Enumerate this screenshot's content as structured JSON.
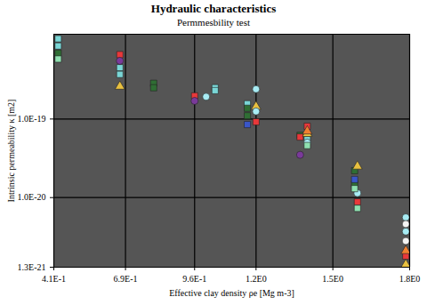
{
  "chart_data": {
    "type": "scatter",
    "title": "Hydraulic characteristics",
    "subtitle": "Permmesbility test",
    "x_label": "Effective clay density ρe [Mg m-3]",
    "y_label": "Intrinsic permeability κ [m2]",
    "log": "y",
    "grid": true,
    "xlim": [
      0.41,
      1.8
    ],
    "xticks": [
      {
        "value": 0.41,
        "label": "4.1E-1"
      },
      {
        "value": 0.69,
        "label": "6.9E-1"
      },
      {
        "value": 0.96,
        "label": "9.6E-1"
      },
      {
        "value": 1.2,
        "label": "1.2E0"
      },
      {
        "value": 1.5,
        "label": "1.5E0"
      },
      {
        "value": 1.8,
        "label": "1.8E0"
      }
    ],
    "ylim": [
      1.3e-21,
      1.2e-18
    ],
    "yticks": [
      {
        "value": 1e-19,
        "label": "1.0E-19"
      },
      {
        "value": 1e-20,
        "label": "1.0E-20"
      },
      {
        "value": 1.3e-21,
        "label": "1.3E-21"
      }
    ],
    "series": [
      {
        "color": "#7ad6d6",
        "marker": "square",
        "x": [
          0.427,
          0.427,
          0.668,
          0.668,
          1.04,
          1.04,
          1.166,
          1.4
        ],
        "values": [
          1.05e-18,
          8.5e-19,
          4.5e-19,
          3.7e-19,
          2.5e-19,
          2.3e-19,
          1.56e-19,
          5.5e-20
        ]
      },
      {
        "color": "#2f6e34",
        "marker": "square",
        "x": [
          0.427,
          0.8,
          0.8,
          1.166,
          1.166,
          1.372,
          1.585,
          1.585
        ],
        "values": [
          6.9e-19,
          2.85e-19,
          2.5e-19,
          1.37e-19,
          1.1e-19,
          6.2e-20,
          2.2e-20,
          1.5e-20
        ]
      },
      {
        "color": "#e8383a",
        "marker": "square",
        "x": [
          0.668,
          0.96,
          1.2,
          1.372,
          1.4,
          1.596,
          1.785
        ],
        "values": [
          6.6e-19,
          1.97e-19,
          9.2e-20,
          5.9e-20,
          8.1e-20,
          8.8e-21,
          1.8e-21
        ]
      },
      {
        "color": "#7a3a9a",
        "marker": "circle",
        "x": [
          0.668,
          0.96,
          1.372
        ],
        "values": [
          5.5e-19,
          1.7e-19,
          3.5e-20
        ]
      },
      {
        "color": "#e8c040",
        "marker": "triangle",
        "x": [
          0.668,
          1.2,
          1.4,
          1.596,
          1.785
        ],
        "values": [
          2.6e-19,
          1.44e-19,
          6.5e-20,
          2.5e-20,
          1.4e-21
        ]
      },
      {
        "color": "#a8ecf4",
        "marker": "circle",
        "x": [
          1.005,
          1.2,
          1.2,
          1.4,
          1.596,
          1.785,
          1.785
        ],
        "values": [
          1.92e-19,
          2.4e-19,
          1.25e-19,
          5e-20,
          1.14e-20,
          5.6e-21,
          3.7e-21
        ]
      },
      {
        "color": "#3a56c8",
        "marker": "square",
        "x": [
          1.166,
          1.585
        ],
        "values": [
          8.5e-20,
          1.7e-20
        ]
      },
      {
        "color": "#8fe0b0",
        "marker": "square",
        "x": [
          0.427,
          1.4,
          1.596,
          1.585
        ],
        "values": [
          5.8e-19,
          4.6e-20,
          7.3e-21,
          1.3e-20
        ]
      },
      {
        "color": "#f4f4f4",
        "marker": "circle",
        "x": [
          1.785,
          1.785
        ],
        "values": [
          4.6e-21,
          2.8e-21
        ]
      },
      {
        "color": "#f08030",
        "marker": "triangle",
        "x": [
          1.785,
          1.4
        ],
        "values": [
          2.1e-21,
          7e-20
        ]
      }
    ]
  }
}
